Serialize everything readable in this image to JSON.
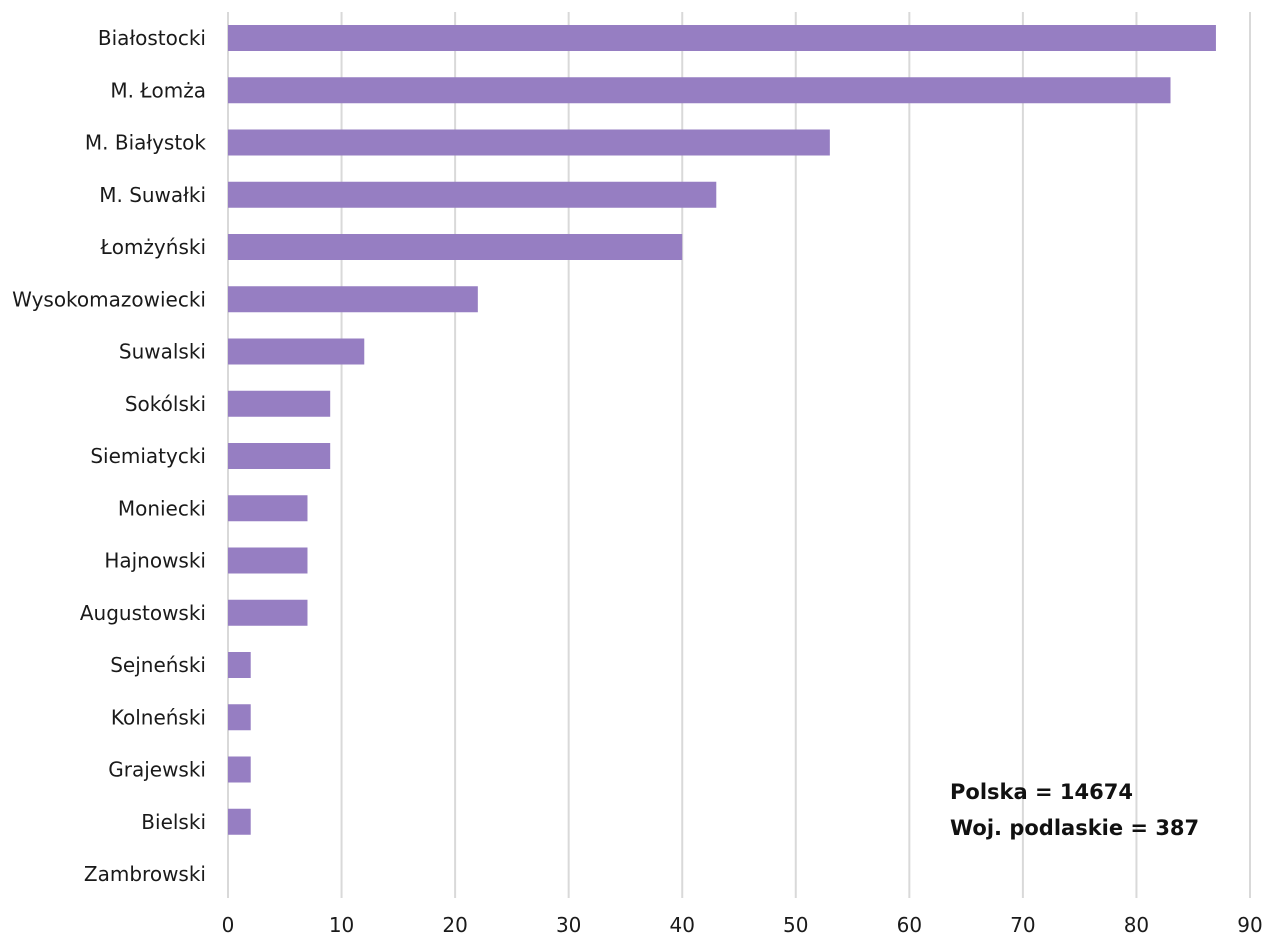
{
  "chart_data": {
    "type": "bar",
    "orientation": "horizontal",
    "categories": [
      "Białostocki",
      "M. Łomża",
      "M. Białystok",
      "M. Suwałki",
      "Łomżyński",
      "Wysokomazowiecki",
      "Suwalski",
      "Sokólski",
      "Siemiatycki",
      "Moniecki",
      "Hajnowski",
      "Augustowski",
      "Sejneński",
      "Kolneński",
      "Grajewski",
      "Bielski",
      "Zambrowski"
    ],
    "values": [
      87,
      83,
      53,
      43,
      40,
      22,
      12,
      9,
      9,
      7,
      7,
      7,
      2,
      2,
      2,
      2,
      0
    ],
    "xlim": [
      0,
      90
    ],
    "xticks": [
      "0",
      "10",
      "20",
      "30",
      "40",
      "50",
      "60",
      "70",
      "80",
      "90"
    ],
    "grid": true,
    "bar_color": "#967ec2",
    "annotations": [
      "Polska = 14674",
      "Woj. podlaskie = 387"
    ]
  }
}
